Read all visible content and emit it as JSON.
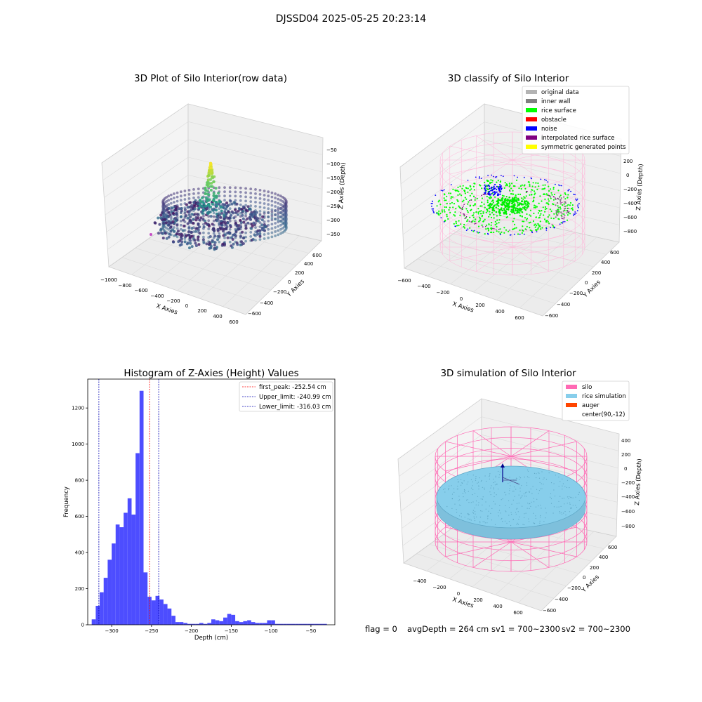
{
  "figure": {
    "suptitle": "DJSSD04 2025-05-25 20:23:14",
    "footer": {
      "flag": "flag = 0",
      "avg_depth": "avgDepth = 264 cm",
      "sv1": "sv1 = 700~2300",
      "sv2": "sv2 = 700~2300"
    }
  },
  "chart_data": [
    {
      "type": "scatter",
      "projection": "3d",
      "title": "3D Plot of Silo Interior(row data)",
      "xlabel": "X Axies",
      "ylabel": "Y Axies",
      "zlabel": "Z Axies (Depth)",
      "xticks": [
        "−1000",
        "−800",
        "−600",
        "−400",
        "−200",
        "0",
        "200",
        "400",
        "600"
      ],
      "yticks": [
        "−600",
        "−400",
        "−200",
        "0",
        "200",
        "400",
        "600"
      ],
      "zticks": [
        "−50",
        "−100",
        "−150",
        "−200",
        "−250",
        "−300",
        "−350"
      ],
      "colormap": "viridis"
    },
    {
      "type": "scatter",
      "projection": "3d",
      "title": "3D classify of Silo Interior",
      "xlabel": "X Axies",
      "ylabel": "Y Axies",
      "zlabel": "Z Axies (Depth)",
      "xticks": [
        "−600",
        "−400",
        "−200",
        "0",
        "200",
        "400",
        "600"
      ],
      "yticks": [
        "−600",
        "−400",
        "−200",
        "0",
        "200",
        "400",
        "600"
      ],
      "zticks": [
        "200",
        "0",
        "−200",
        "−400",
        "−600",
        "−800"
      ],
      "legend_position": "top-right",
      "legend": [
        {
          "label": "original data",
          "color": "#b3b3b3"
        },
        {
          "label": "inner wall",
          "color": "#808080"
        },
        {
          "label": "rice surface",
          "color": "#00ff00"
        },
        {
          "label": "obstacle",
          "color": "#ff0000"
        },
        {
          "label": "noise",
          "color": "#0000ff"
        },
        {
          "label": "interpolated rice surface",
          "color": "#800080"
        },
        {
          "label": "symmetric generated points",
          "color": "#ffff00"
        }
      ]
    },
    {
      "type": "bar",
      "title": "Histogram of Z-Axies (Height) Values",
      "xlabel": "Depth (cm)",
      "ylabel": "Frequency",
      "xlim": [
        -330,
        -20
      ],
      "ylim": [
        0,
        1360
      ],
      "xticks": [
        -300,
        -250,
        -200,
        -150,
        -100,
        -50
      ],
      "yticks": [
        0,
        200,
        400,
        600,
        800,
        1000,
        1200
      ],
      "bar_color": "#4d4dff",
      "bin_width": 5,
      "bins_left_edge": [
        -325,
        -320,
        -315,
        -310,
        -305,
        -300,
        -295,
        -290,
        -285,
        -280,
        -275,
        -270,
        -265,
        -260,
        -255,
        -250,
        -245,
        -240,
        -235,
        -230,
        -225,
        -220,
        -215,
        -210,
        -205,
        -200,
        -195,
        -190,
        -185,
        -180,
        -175,
        -170,
        -165,
        -160,
        -155,
        -150,
        -145,
        -140,
        -135,
        -130,
        -125,
        -120,
        -115,
        -110,
        -105,
        -100,
        -95,
        -90,
        -85,
        -80,
        -75,
        -70,
        -65,
        -60,
        -55,
        -50,
        -45,
        -40,
        -35
      ],
      "counts": [
        30,
        105,
        180,
        260,
        360,
        450,
        555,
        540,
        620,
        700,
        610,
        950,
        1295,
        290,
        155,
        135,
        160,
        140,
        115,
        90,
        50,
        15,
        15,
        10,
        5,
        5,
        5,
        10,
        5,
        10,
        30,
        25,
        20,
        40,
        60,
        55,
        20,
        15,
        20,
        25,
        15,
        10,
        10,
        10,
        25,
        25,
        5,
        5,
        5,
        5,
        5,
        5,
        5,
        5,
        5,
        5,
        5,
        5,
        5
      ],
      "vlines": [
        {
          "label": "first_peak: -252.54 cm",
          "x": -252.54,
          "color": "#ff0000"
        },
        {
          "label": "Upper_limit: -240.99 cm",
          "x": -240.99,
          "color": "#0000b3"
        },
        {
          "label": "Lower_limit: -316.03 cm",
          "x": -316.03,
          "color": "#0000b3"
        }
      ],
      "legend_position": "top-right"
    },
    {
      "type": "scatter",
      "projection": "3d",
      "title": "3D simulation of Silo Interior",
      "xlabel": "X Axies",
      "ylabel": "Y Axies",
      "zlabel": "Z Axies (Depth)",
      "xticks": [
        "−400",
        "−200",
        "0",
        "200",
        "400",
        "600"
      ],
      "yticks": [
        "−600",
        "−400",
        "−200",
        "0",
        "200",
        "400",
        "600"
      ],
      "zticks": [
        "400",
        "200",
        "0",
        "−200",
        "−400",
        "−600",
        "−800"
      ],
      "legend_position": "top-right",
      "legend": [
        {
          "label": "silo",
          "color": "#ff69b4"
        },
        {
          "label": "rice simulation",
          "color": "#87ceeb"
        },
        {
          "label": "auger",
          "color": "#ff4500"
        },
        {
          "label": "center(90,-12)",
          "color": "none"
        }
      ]
    }
  ]
}
